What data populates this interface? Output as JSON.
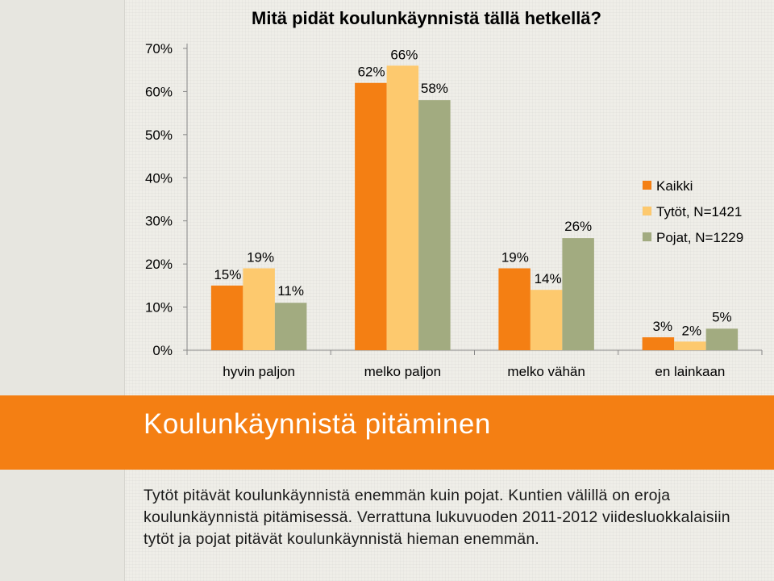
{
  "chart_data": {
    "type": "bar",
    "title": "Mitä pidät koulunkäynnistä tällä hetkellä?",
    "categories": [
      "hyvin paljon",
      "melko paljon",
      "melko vähän",
      "en lainkaan"
    ],
    "series": [
      {
        "name": "Kaikki",
        "values": [
          15,
          62,
          19,
          3
        ],
        "color": "#f47f13"
      },
      {
        "name": "Tytöt, N=1421",
        "values": [
          19,
          66,
          14,
          2
        ],
        "color": "#fdc96e"
      },
      {
        "name": "Pojat, N=1229",
        "values": [
          11,
          58,
          26,
          5
        ],
        "color": "#a2ab80"
      }
    ],
    "data_labels": [
      [
        "15%",
        "62%",
        "19%",
        "3%"
      ],
      [
        "19%",
        "66%",
        "14%",
        "2%"
      ],
      [
        "11%",
        "58%",
        "26%",
        "5%"
      ]
    ],
    "yticks": [
      "0%",
      "10%",
      "20%",
      "30%",
      "40%",
      "50%",
      "60%",
      "70%"
    ],
    "ylim": [
      0,
      70
    ],
    "xlabel": "",
    "ylabel": "",
    "grid": false,
    "legend": "right"
  },
  "section": {
    "title": "Koulunkäynnistä pitäminen",
    "body": "Tytöt pitävät koulunkäynnistä enemmän kuin pojat. Kuntien välillä on eroja koulunkäynnistä pitämisessä. Verrattuna lukuvuoden 2011-2012 viidesluokkalaisiin tytöt ja pojat pitävät koulunkäynnistä hieman enemmän."
  }
}
